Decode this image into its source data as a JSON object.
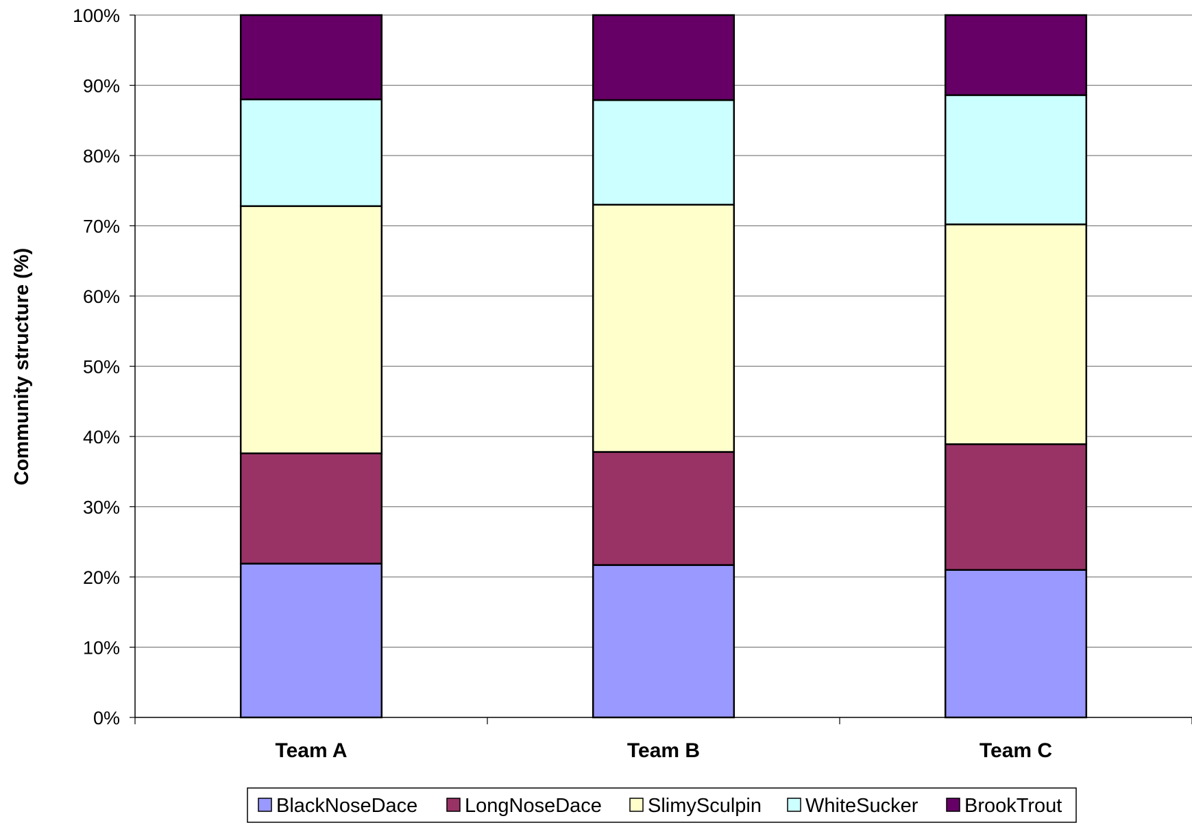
{
  "chart_data": {
    "type": "bar",
    "stacked": true,
    "percent_stacked": true,
    "categories": [
      "Team A",
      "Team B",
      "Team C"
    ],
    "ylabel": "Community structure (%)",
    "xlabel": "",
    "ylim": [
      0,
      100
    ],
    "yticks": [
      "0%",
      "10%",
      "20%",
      "30%",
      "40%",
      "50%",
      "60%",
      "70%",
      "80%",
      "90%",
      "100%"
    ],
    "grid": true,
    "legend_position": "bottom",
    "series": [
      {
        "name": "BlackNoseDace",
        "color": "#9999ff",
        "values": [
          21.9,
          21.7,
          21.0
        ]
      },
      {
        "name": "LongNoseDace",
        "color": "#993366",
        "values": [
          15.7,
          16.1,
          17.9
        ]
      },
      {
        "name": "SlimySculpin",
        "color": "#ffffcc",
        "values": [
          35.2,
          35.2,
          31.3
        ]
      },
      {
        "name": "WhiteSucker",
        "color": "#ccffff",
        "values": [
          15.2,
          14.9,
          18.4
        ]
      },
      {
        "name": "BrookTrout",
        "color": "#660066",
        "values": [
          12.0,
          12.1,
          11.4
        ]
      }
    ]
  }
}
